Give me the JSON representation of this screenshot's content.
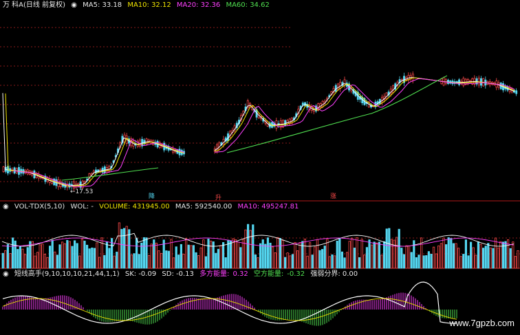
{
  "colors": {
    "up": "#ff4b4b",
    "down": "#54d6f0",
    "ma5": "#ffffff",
    "ma10": "#f0e400",
    "ma20": "#ff40ff",
    "ma60": "#50e050",
    "grid": "#8a1a1a",
    "divider": "#b01818"
  },
  "main_header": {
    "stock": "万 科A(日线 前复权)",
    "ma5": "MA5: 33.18",
    "ma10": "MA10: 32.12",
    "ma20": "MA20: 32.36",
    "ma60": "MA60: 34.62"
  },
  "low_price_label": "17.53",
  "markers": [
    {
      "text": "降",
      "color": "#54d6f0"
    },
    {
      "text": "升",
      "color": "#ff4b4b"
    },
    {
      "text": "涨",
      "color": "#ff4b4b"
    }
  ],
  "vol_header": {
    "name": "VOL-TDX(5,10)",
    "vol": "WOL: -",
    "volume": "VOLUME: 431945.00",
    "ma5": "MA5: 592540.00",
    "ma10": "MA10: 495247.81"
  },
  "ind_header": {
    "name": "短线高手(9,10,10,10,21,44,1,1)",
    "sk": "SK: -0.09",
    "sd": "SD: -0.13",
    "bull_label": "多方能量:",
    "bull_value": "0.32",
    "bear_label": "空方能量:",
    "bear_value": "-0.32",
    "divide": "强弱分界: 0.00"
  },
  "watermark": "www.7gpzb.com"
}
